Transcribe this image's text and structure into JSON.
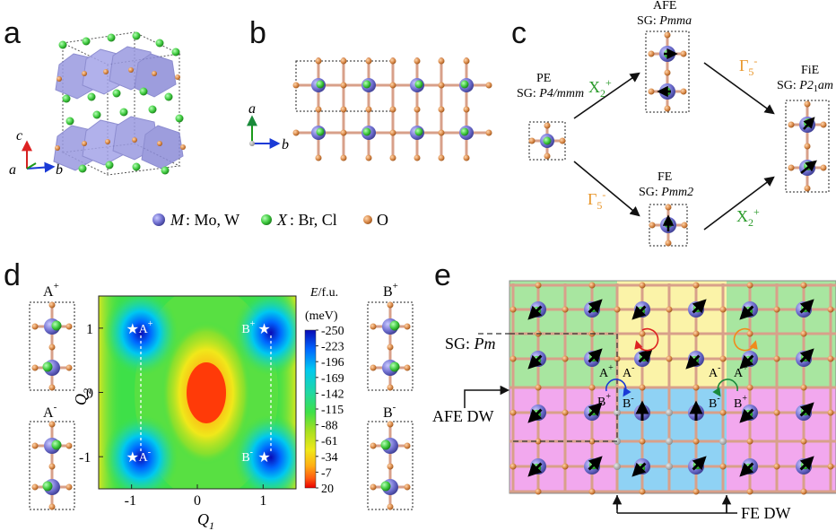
{
  "panels": {
    "a": "a",
    "b": "b",
    "c": "c",
    "d": "d",
    "e": "e"
  },
  "panel_a": {
    "axis_c": "c",
    "axis_a": "a",
    "axis_b": "b"
  },
  "panel_b": {
    "axis_a": "a",
    "axis_b": "b"
  },
  "legend": {
    "m_label": "M",
    "m_text": ": Mo, W",
    "x_label": "X",
    "x_text": ": Br, Cl",
    "o_text": "O"
  },
  "panel_c": {
    "pe_name": "PE",
    "pe_sg_prefix": "SG: ",
    "pe_sg": "P4/mmm",
    "afe_name": "AFE",
    "afe_sg_prefix": "SG: ",
    "afe_sg": "Pmma",
    "fe_name": "FE",
    "fe_sg_prefix": "SG: ",
    "fe_sg": "Pmm2",
    "fie_name": "FiE",
    "fie_sg_prefix": "SG: ",
    "fie_sg_a": "P2",
    "fie_sg_sub": "1",
    "fie_sg_b": "am",
    "mode_x": "X",
    "mode_x_sub": "2",
    "mode_x_sup": "+",
    "mode_g": "Γ",
    "mode_g_sub": "5",
    "mode_g_sup": "-"
  },
  "panel_d": {
    "a_plus": "A",
    "a_plus_sup": "+",
    "a_minus": "A",
    "a_minus_sup": "-",
    "b_plus": "B",
    "b_plus_sup": "+",
    "b_minus": "B",
    "b_minus_sup": "-",
    "colorbar_title": "E/f.u.",
    "colorbar_unit": "(meV)"
  },
  "chart_data": {
    "type": "heatmap",
    "xlabel": "Q",
    "xlabel_sub": "1",
    "ylabel": "Q",
    "ylabel_sub": "2",
    "xticks": [
      "-1",
      "0",
      "1"
    ],
    "yticks": [
      "1",
      "0",
      "-1"
    ],
    "xlim": [
      -1.5,
      1.5
    ],
    "ylim": [
      -1.5,
      1.5
    ],
    "colorbar_ticks": [
      "-250",
      "-223",
      "-196",
      "-169",
      "-142",
      "-115",
      "-88",
      "-61",
      "-34",
      "-7",
      "20"
    ],
    "colorbar_range": [
      -250,
      20
    ],
    "minima": [
      {
        "label": "A",
        "sup": "+",
        "q1": -1,
        "q2": 1
      },
      {
        "label": "B",
        "sup": "+",
        "q1": 1,
        "q2": 1
      },
      {
        "label": "A",
        "sup": "-",
        "q1": -1,
        "q2": -1
      },
      {
        "label": "B",
        "sup": "-",
        "q1": 1,
        "q2": -1
      }
    ],
    "colors": {
      "low": "#1010c8",
      "mid": "#22cc55",
      "high": "#ee2200"
    }
  },
  "panel_e": {
    "sg_prefix": "SG: ",
    "sg": "Pm",
    "afe_dw": "AFE DW",
    "fe_dw": "FE DW",
    "labels": [
      {
        "t": "A",
        "s": "+"
      },
      {
        "t": "A",
        "s": "-"
      },
      {
        "t": "B",
        "s": "+"
      },
      {
        "t": "B",
        "s": "-"
      },
      {
        "t": "A",
        "s": "-"
      },
      {
        "t": "A",
        "s": "+"
      },
      {
        "t": "B",
        "s": "-"
      },
      {
        "t": "B",
        "s": "+"
      }
    ],
    "regions": {
      "green": "#a8e6a0",
      "yellow": "#fbf3a8",
      "pink": "#f2a8ee",
      "blue": "#8fd2f4"
    }
  },
  "colors": {
    "m_atom": "#6f6fcf",
    "x_atom": "#3ec93e",
    "o_atom": "#d98a4a",
    "octahedra": "#9a9ae0",
    "mode_x": "#2a9a2a",
    "mode_g": "#e8962a"
  }
}
